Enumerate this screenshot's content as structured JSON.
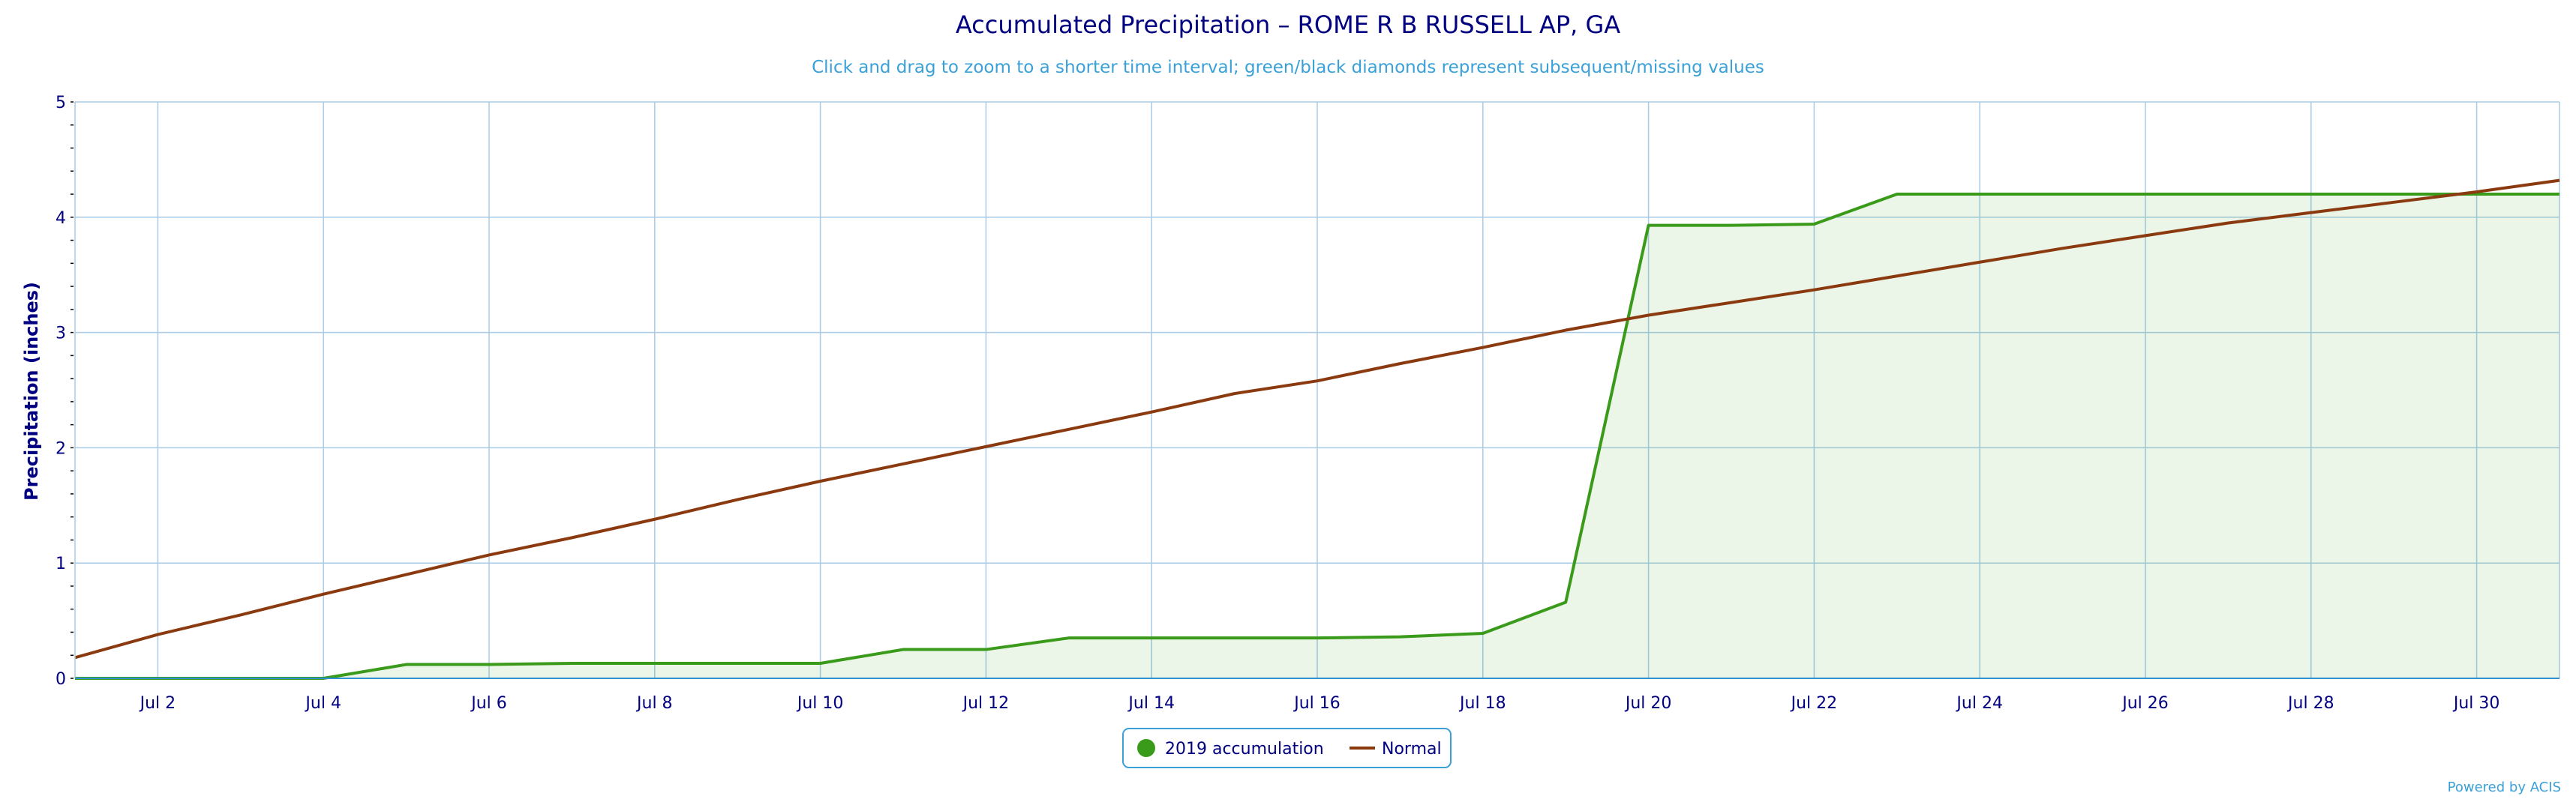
{
  "chart_data": {
    "type": "line",
    "title": "Accumulated Precipitation – ROME R B RUSSELL AP, GA",
    "subtitle": "Click and drag to zoom to a shorter time interval; green/black diamonds represent subsequent/missing values",
    "ylabel": "Precipitation (inches)",
    "xlabel": "",
    "ylim": [
      0,
      5
    ],
    "xlim": [
      1,
      31
    ],
    "yticks": [
      0,
      1,
      2,
      3,
      4,
      5
    ],
    "xticks": [
      2,
      4,
      6,
      8,
      10,
      12,
      14,
      16,
      18,
      20,
      22,
      24,
      26,
      28,
      30
    ],
    "xtick_labels": [
      "Jul 2",
      "Jul 4",
      "Jul 6",
      "Jul 8",
      "Jul 10",
      "Jul 12",
      "Jul 14",
      "Jul 16",
      "Jul 18",
      "Jul 20",
      "Jul 22",
      "Jul 24",
      "Jul 26",
      "Jul 28",
      "Jul 30"
    ],
    "grid": true,
    "legend_position": "bottom-center",
    "series": [
      {
        "name": "2019 accumulation",
        "color": "#3a9a1a",
        "fill": "rgba(58,154,26,0.10)",
        "x": [
          1,
          2,
          3,
          4,
          5,
          6,
          7,
          8,
          9,
          10,
          11,
          12,
          13,
          14,
          15,
          16,
          17,
          18,
          19,
          20,
          21,
          22,
          23,
          24,
          25,
          26,
          27,
          28,
          29,
          30,
          31
        ],
        "values": [
          0,
          0,
          0,
          0,
          0.12,
          0.12,
          0.13,
          0.13,
          0.13,
          0.13,
          0.25,
          0.25,
          0.35,
          0.35,
          0.35,
          0.35,
          0.36,
          0.39,
          0.66,
          3.93,
          3.93,
          3.94,
          4.2,
          4.2,
          4.2,
          4.2,
          4.2,
          4.2,
          4.2,
          4.2,
          4.2
        ]
      },
      {
        "name": "Normal",
        "color": "#8b3a0f",
        "x": [
          1,
          2,
          3,
          4,
          5,
          6,
          7,
          8,
          9,
          10,
          11,
          12,
          13,
          14,
          15,
          16,
          17,
          18,
          19,
          20,
          21,
          22,
          23,
          24,
          25,
          26,
          27,
          28,
          29,
          30,
          31
        ],
        "values": [
          0.18,
          0.38,
          0.55,
          0.73,
          0.9,
          1.07,
          1.22,
          1.38,
          1.55,
          1.71,
          1.86,
          2.01,
          2.16,
          2.31,
          2.47,
          2.58,
          2.73,
          2.87,
          3.02,
          3.15,
          3.26,
          3.37,
          3.49,
          3.61,
          3.73,
          3.84,
          3.95,
          4.04,
          4.13,
          4.22,
          4.32
        ]
      }
    ]
  },
  "credit": "Powered by ACIS",
  "colors": {
    "grid": "#a9cbe6",
    "axis": "#000080",
    "plot_border": "#a9cbe6"
  }
}
